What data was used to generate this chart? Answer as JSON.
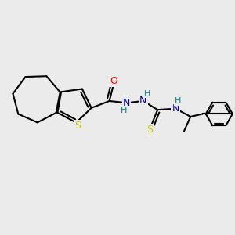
{
  "background_color": "#ebebeb",
  "atom_colors": {
    "C": "#000000",
    "N": "#0000cc",
    "O": "#ff0000",
    "S_thio": "#cccc00",
    "H": "#008080"
  },
  "bond_color": "#000000",
  "bond_width": 1.5,
  "figsize": [
    3.0,
    3.0
  ],
  "dpi": 100,
  "xlim": [
    0,
    10
  ],
  "ylim": [
    0,
    10
  ]
}
